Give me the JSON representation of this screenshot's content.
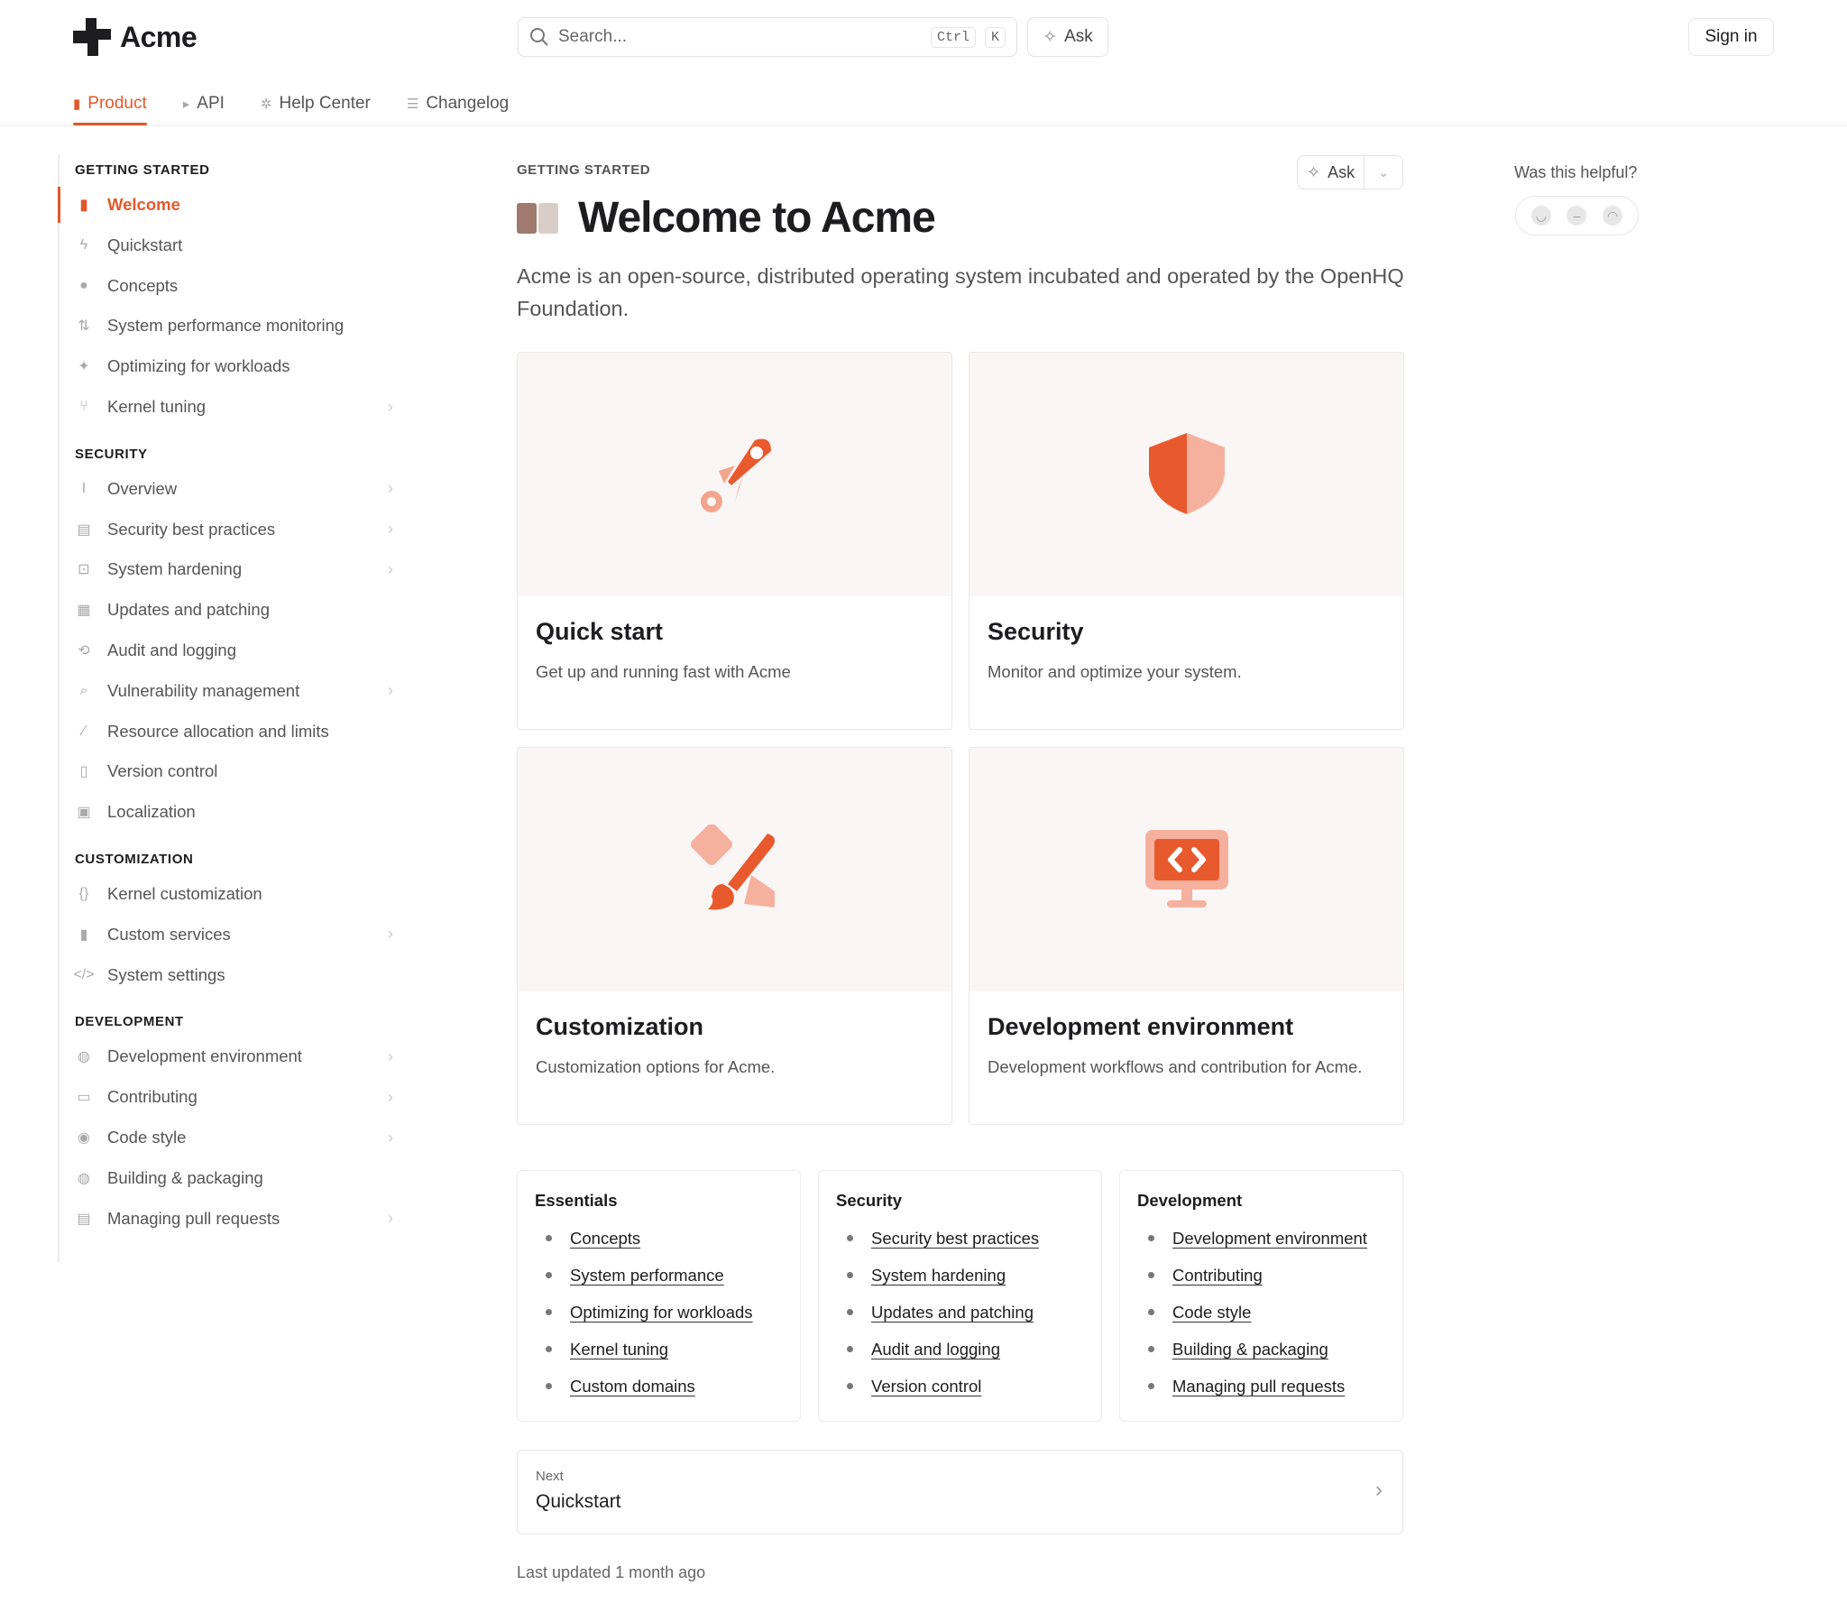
{
  "brand": {
    "name": "Acme",
    "accent": "#e2582b"
  },
  "header": {
    "search_placeholder": "Search...",
    "shortcut_ctrl": "Ctrl",
    "shortcut_k": "K",
    "ask": "Ask",
    "sign_in": "Sign in"
  },
  "tabs": [
    {
      "label": "Product",
      "icon": "book-icon",
      "active": true
    },
    {
      "label": "API",
      "icon": "terminal-icon"
    },
    {
      "label": "Help Center",
      "icon": "lifebuoy-icon"
    },
    {
      "label": "Changelog",
      "icon": "list-icon"
    }
  ],
  "sidebar": [
    {
      "heading": "GETTING STARTED",
      "items": [
        {
          "label": "Welcome",
          "icon": "book-icon",
          "active": true
        },
        {
          "label": "Quickstart",
          "icon": "bolt-icon"
        },
        {
          "label": "Concepts",
          "icon": "lightbulb-icon"
        },
        {
          "label": "System performance monitoring",
          "icon": "arrows-icon"
        },
        {
          "label": "Optimizing for workloads",
          "icon": "sparkle-icon"
        },
        {
          "label": "Kernel tuning",
          "icon": "git-pull-icon",
          "chevron": true
        }
      ]
    },
    {
      "heading": "SECURITY",
      "items": [
        {
          "label": "Overview",
          "icon": "cursor-text-icon",
          "chevron": true
        },
        {
          "label": "Security best practices",
          "icon": "folders-icon",
          "chevron": true
        },
        {
          "label": "System hardening",
          "icon": "frame-plus-icon",
          "chevron": true
        },
        {
          "label": "Updates and patching",
          "icon": "grid-edit-icon"
        },
        {
          "label": "Audit and logging",
          "icon": "repeat-icon"
        },
        {
          "label": "Vulnerability management",
          "icon": "search-icon",
          "chevron": true
        },
        {
          "label": "Resource allocation and limits",
          "icon": "wand-icon"
        },
        {
          "label": "Version control",
          "icon": "sidebar-icon"
        },
        {
          "label": "Localization",
          "icon": "id-card-icon"
        }
      ]
    },
    {
      "heading": "CUSTOMIZATION",
      "items": [
        {
          "label": "Kernel customization",
          "icon": "braces-icon"
        },
        {
          "label": "Custom services",
          "icon": "book-icon",
          "chevron": true
        },
        {
          "label": "System settings",
          "icon": "code-icon"
        }
      ]
    },
    {
      "heading": "DEVELOPMENT",
      "items": [
        {
          "label": "Development environment",
          "icon": "globe-icon",
          "chevron": true
        },
        {
          "label": "Contributing",
          "icon": "window-icon",
          "chevron": true
        },
        {
          "label": "Code style",
          "icon": "palette-icon",
          "chevron": true
        },
        {
          "label": "Building & packaging",
          "icon": "globe-icon"
        },
        {
          "label": "Managing pull requests",
          "icon": "folders-icon",
          "chevron": true
        }
      ]
    }
  ],
  "main": {
    "eyebrow": "GETTING STARTED",
    "ask": "Ask",
    "title": "Welcome to Acme",
    "description": "Acme is an open-source, distributed operating system incubated and operated by the OpenHQ Foundation.",
    "cards": [
      {
        "title": "Quick start",
        "desc": "Get up and running fast with Acme",
        "icon": "rocket-icon"
      },
      {
        "title": "Security",
        "desc": "Monitor and optimize your system.",
        "icon": "shield-icon"
      },
      {
        "title": "Customization",
        "desc": "Customization options for Acme.",
        "icon": "brush-icon"
      },
      {
        "title": "Development environment",
        "desc": "Development workflows and contribution for Acme.",
        "icon": "monitor-code-icon"
      }
    ],
    "link_groups": [
      {
        "title": "Essentials",
        "links": [
          "Concepts",
          "System performance",
          "Optimizing for workloads",
          "Kernel tuning",
          "Custom domains"
        ]
      },
      {
        "title": "Security",
        "links": [
          "Security best practices",
          "System hardening",
          "Updates and patching",
          "Audit and logging",
          "Version control"
        ]
      },
      {
        "title": "Development",
        "links": [
          "Development environment",
          "Contributing",
          "Code style",
          "Building & packaging",
          "Managing pull requests"
        ]
      }
    ],
    "next": {
      "label": "Next",
      "title": "Quickstart"
    },
    "last_updated": "Last updated 1 month ago"
  },
  "feedback": {
    "question": "Was this helpful?"
  }
}
